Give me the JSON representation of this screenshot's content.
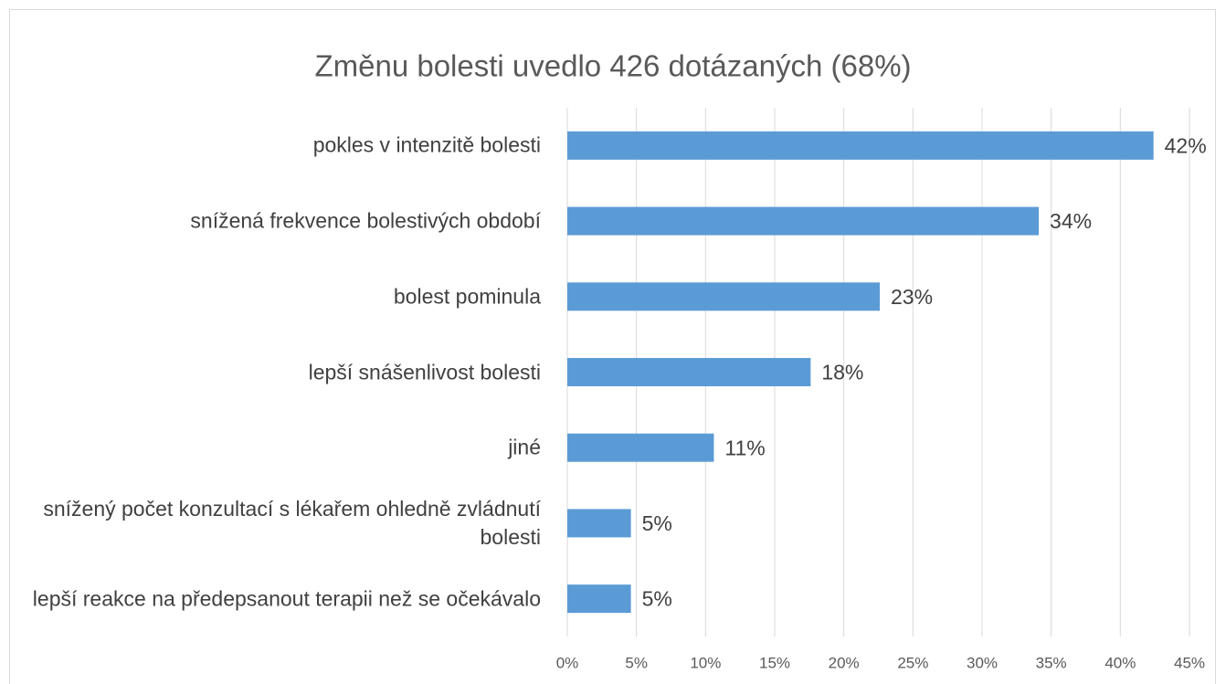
{
  "chart_data": {
    "type": "bar",
    "orientation": "horizontal",
    "title": "Změnu bolesti uvedlo 426 dotázaných (68%)",
    "categories": [
      "pokles v intenzitě bolesti",
      "snížená frekvence bolestivých období",
      "bolest pominula",
      "lepší snášenlivost bolesti",
      "jiné",
      "snížený počet konzultací s lékařem ohledně zvládnutí bolesti",
      "lepší reakce na předepsanout terapii než se očekávalo"
    ],
    "values": [
      42.4,
      34.1,
      22.6,
      17.6,
      10.6,
      4.6,
      4.6
    ],
    "value_labels": [
      "42%",
      "34%",
      "23%",
      "18%",
      "11%",
      "5%",
      "5%"
    ],
    "color": "#5b9bd5",
    "xlim": [
      0,
      45
    ],
    "xticks": [
      {
        "value": 0,
        "label": "0%"
      },
      {
        "value": 5,
        "label": "5%"
      },
      {
        "value": 10,
        "label": "10%"
      },
      {
        "value": 15,
        "label": "15%"
      },
      {
        "value": 20,
        "label": "20%"
      },
      {
        "value": 25,
        "label": "25%"
      },
      {
        "value": 30,
        "label": "30%"
      },
      {
        "value": 35,
        "label": "35%"
      },
      {
        "value": 40,
        "label": "40%"
      },
      {
        "value": 45,
        "label": "45%"
      }
    ],
    "grid": true
  }
}
